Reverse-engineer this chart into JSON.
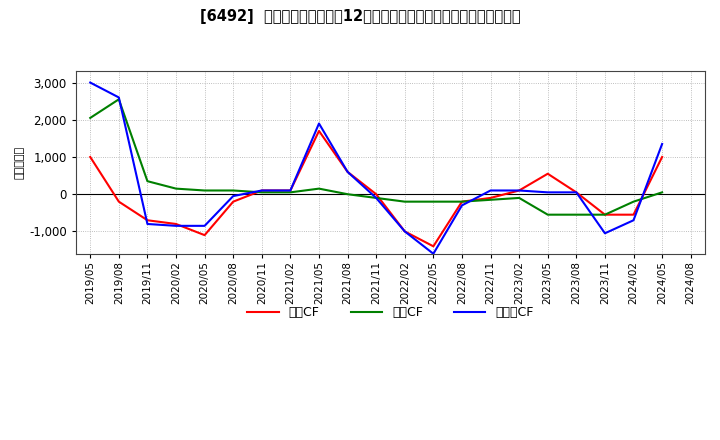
{
  "title": "[6492]  キャッシュフローの12か月移動合計の対前年同期増減額の推移",
  "ylabel": "（百万円）",
  "x_labels": [
    "2019/05",
    "2019/08",
    "2019/11",
    "2020/02",
    "2020/05",
    "2020/08",
    "2020/11",
    "2021/02",
    "2021/05",
    "2021/08",
    "2021/11",
    "2022/02",
    "2022/05",
    "2022/08",
    "2022/11",
    "2023/02",
    "2023/05",
    "2023/08",
    "2023/11",
    "2024/02",
    "2024/05",
    "2024/08"
  ],
  "operating_cf": [
    1000,
    -200,
    -700,
    -800,
    -1100,
    -200,
    100,
    100,
    1700,
    600,
    0,
    -1000,
    -1400,
    -200,
    -100,
    100,
    550,
    50,
    -550,
    -550,
    1000,
    null
  ],
  "investing_cf": [
    2050,
    2550,
    350,
    150,
    100,
    100,
    50,
    50,
    150,
    0,
    -100,
    -200,
    -200,
    -200,
    -150,
    -100,
    -550,
    -550,
    -550,
    -200,
    50,
    null
  ],
  "free_cf": [
    3000,
    2600,
    -800,
    -850,
    -850,
    -50,
    100,
    100,
    1900,
    600,
    -100,
    -1000,
    -1600,
    -300,
    100,
    100,
    50,
    50,
    -1050,
    -700,
    1350,
    null
  ],
  "operating_color": "#ff0000",
  "investing_color": "#008000",
  "free_color": "#0000ff",
  "ylim": [
    -1600,
    3300
  ],
  "yticks": [
    -1000,
    0,
    1000,
    2000,
    3000
  ],
  "background_color": "#ffffff",
  "plot_bg_color": "#ffffff",
  "grid_color": "#aaaaaa",
  "legend_labels": [
    "営業CF",
    "投資CF",
    "フリーCF"
  ]
}
